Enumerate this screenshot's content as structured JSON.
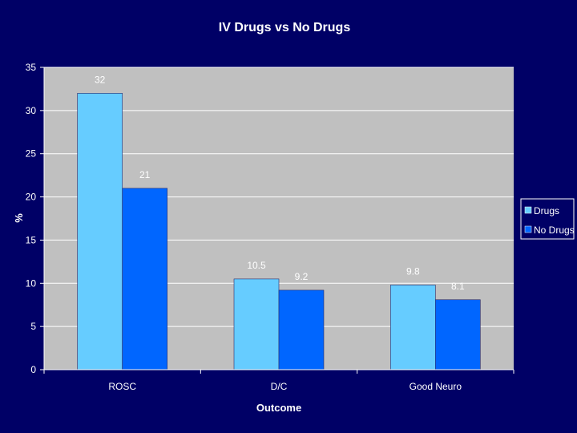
{
  "chart_data": {
    "type": "bar",
    "title": "IV Drugs vs No Drugs",
    "xlabel": "Outcome",
    "ylabel": "%",
    "categories": [
      "ROSC",
      "D/C",
      "Good Neuro"
    ],
    "series": [
      {
        "name": "Drugs",
        "values": [
          32,
          10.5,
          9.8
        ],
        "color": "#66ccff",
        "labels": [
          "32",
          "10.5",
          "9.8"
        ]
      },
      {
        "name": "No Drugs",
        "values": [
          21,
          9.2,
          8.1
        ],
        "color": "#0066ff",
        "labels": [
          "21",
          "9.2",
          "8.1"
        ]
      }
    ],
    "ylim": [
      0,
      35
    ],
    "yticks": [
      "0",
      "5",
      "10",
      "15",
      "20",
      "25",
      "30",
      "35"
    ],
    "ytick_values": [
      0,
      5,
      10,
      15,
      20,
      25,
      30,
      35
    ],
    "grid": true,
    "legend_position": "right",
    "background_color": "#000066",
    "plot_area_color": "#c0c0c0",
    "gridline_color": "#ffffff"
  }
}
